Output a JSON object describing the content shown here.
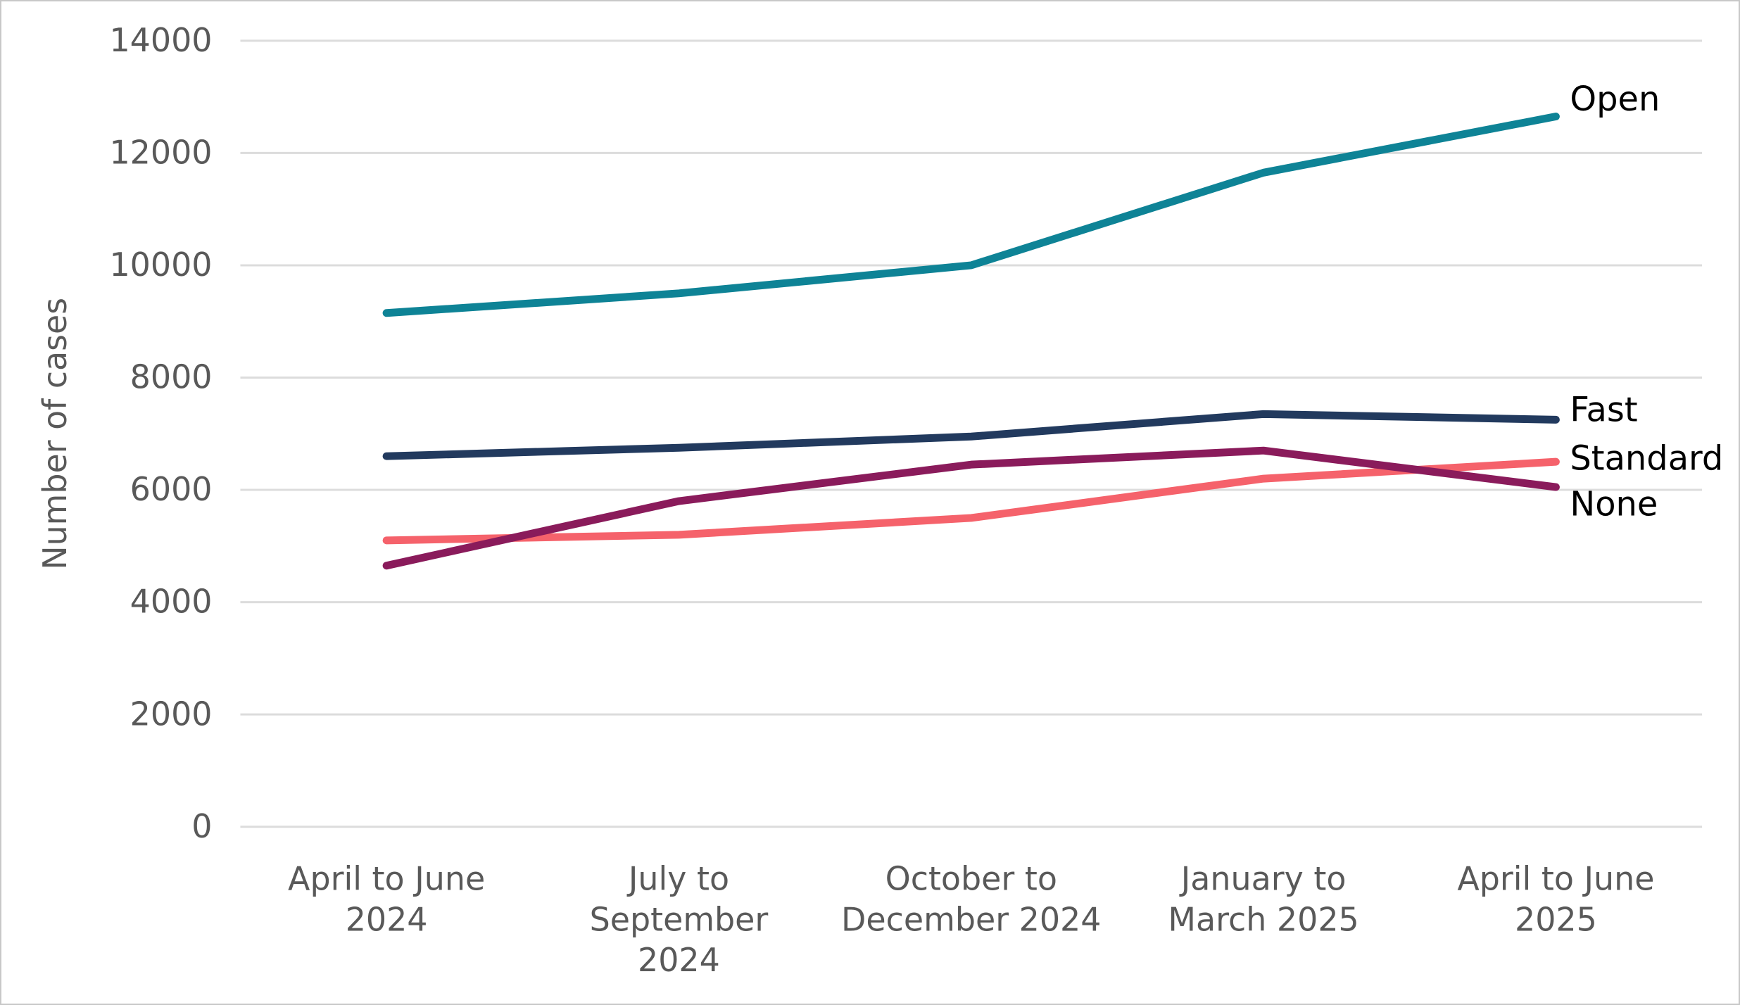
{
  "chart_data": {
    "type": "line",
    "title": "",
    "xlabel": "",
    "ylabel": "Number of cases",
    "ylim": [
      0,
      14000
    ],
    "ytick_step": 2000,
    "yticks": [
      0,
      2000,
      4000,
      6000,
      8000,
      10000,
      12000,
      14000
    ],
    "ytick_labels": [
      "0",
      "2000",
      "4000",
      "6000",
      "8000",
      "10000",
      "12000",
      "14000"
    ],
    "grid": "horizontal-only",
    "legend_position": "labels-at-line-ends",
    "categories": [
      "April to June 2024",
      "July to September 2024",
      "October to December 2024",
      "January to March 2025",
      "April to June 2025"
    ],
    "category_label_lines": [
      [
        "April to June",
        "2024"
      ],
      [
        "July to",
        "September",
        "2024"
      ],
      [
        "October to",
        "December 2024"
      ],
      [
        "January to",
        "March 2025"
      ],
      [
        "April to June",
        "2025"
      ]
    ],
    "series": [
      {
        "name": "Open",
        "color": "#0e8396",
        "values": [
          9150,
          9500,
          10000,
          11650,
          12650
        ]
      },
      {
        "name": "Fast",
        "color": "#223a5e",
        "values": [
          6600,
          6750,
          6950,
          7350,
          7250
        ]
      },
      {
        "name": "Standard",
        "color": "#f5626b",
        "values": [
          5100,
          5200,
          5500,
          6200,
          6500
        ]
      },
      {
        "name": "None",
        "color": "#8a1b5b",
        "values": [
          4650,
          5800,
          6450,
          6700,
          6050
        ]
      }
    ]
  },
  "colors": {
    "background": "#ffffff",
    "frame_border": "#c8c8c8",
    "gridline": "#dcdcdc",
    "axis_text": "#595959",
    "series_label_text": "#000000"
  }
}
